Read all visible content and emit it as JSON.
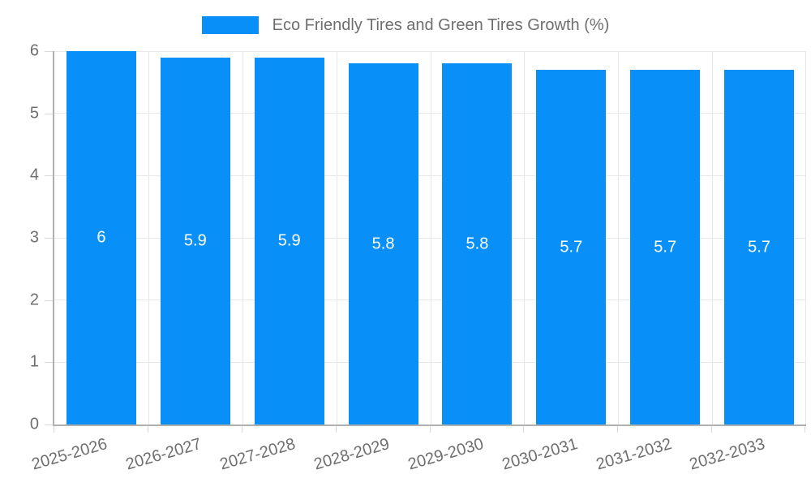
{
  "legend": {
    "label": "Eco Friendly Tires and Green Tires Growth (%)"
  },
  "chart_data": {
    "type": "bar",
    "title": "Eco Friendly Tires and Green Tires Growth (%)",
    "series_name": "Eco Friendly Tires and Green Tires Growth (%)",
    "categories": [
      "2025-2026",
      "2026-2027",
      "2027-2028",
      "2028-2029",
      "2029-2030",
      "2030-2031",
      "2031-2032",
      "2032-2033"
    ],
    "values": [
      6,
      5.9,
      5.9,
      5.8,
      5.8,
      5.7,
      5.7,
      5.7
    ],
    "value_labels": [
      "6",
      "5.9",
      "5.9",
      "5.8",
      "5.8",
      "5.7",
      "5.7",
      "5.7"
    ],
    "xlabel": "",
    "ylabel": "",
    "ylim": [
      0,
      6
    ],
    "yticks": [
      0,
      1,
      2,
      3,
      4,
      5,
      6
    ],
    "grid": true,
    "legend_position": "top",
    "bar_color": "#0990f8",
    "value_label_color": "#ffffff",
    "axis_text_color": "#6e6e6e",
    "grid_color": "#e8e8e8",
    "tick_color": "#d9d9d9",
    "axis_line_color": "#b0b0b0"
  }
}
